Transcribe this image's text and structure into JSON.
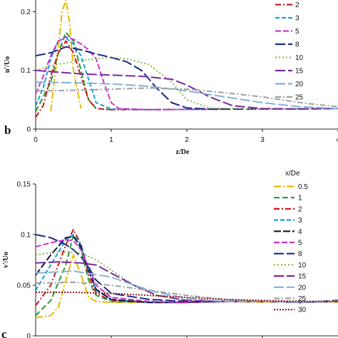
{
  "chart_data": [
    {
      "type": "line",
      "panel_label": "b",
      "xlabel": "z/De",
      "ylabel": "u'/Uo",
      "xlim": [
        0,
        4
      ],
      "ylim": [
        0,
        0.22
      ],
      "xticks": [
        "0",
        "1",
        "2",
        "3",
        "4"
      ],
      "yticks": [
        "0",
        "0.1",
        "0.2"
      ],
      "grid": false,
      "legend": "right",
      "series": [
        {
          "name": "2",
          "color": "#cc1a1a",
          "dash": "8,3,2,3",
          "x": [
            0.0,
            0.1,
            0.2,
            0.3,
            0.4,
            0.5,
            0.6,
            0.7,
            0.8,
            1.0,
            1.5,
            2.5
          ],
          "y": [
            0.02,
            0.04,
            0.09,
            0.13,
            0.15,
            0.13,
            0.09,
            0.05,
            0.035,
            0.033,
            0.033,
            0.034
          ]
        },
        {
          "name": "3",
          "color": "#1aa0d4",
          "dash": "6,3",
          "x": [
            0.0,
            0.1,
            0.2,
            0.3,
            0.4,
            0.5,
            0.6,
            0.7,
            0.8,
            1.0,
            1.5,
            2.5
          ],
          "y": [
            0.04,
            0.07,
            0.12,
            0.15,
            0.155,
            0.145,
            0.125,
            0.085,
            0.045,
            0.034,
            0.033,
            0.034
          ]
        },
        {
          "name": "5",
          "color": "#cc33cc",
          "dash": "8,3",
          "x": [
            0.0,
            0.1,
            0.2,
            0.3,
            0.4,
            0.5,
            0.6,
            0.7,
            0.8,
            0.9,
            1.0,
            1.1,
            1.5,
            2.5
          ],
          "y": [
            0.06,
            0.09,
            0.125,
            0.15,
            0.157,
            0.153,
            0.145,
            0.135,
            0.12,
            0.08,
            0.045,
            0.035,
            0.033,
            0.034
          ]
        },
        {
          "name": "8",
          "color": "#1a2a80",
          "dash": "14,4",
          "x": [
            0.0,
            0.2,
            0.4,
            0.6,
            0.8,
            1.0,
            1.2,
            1.4,
            1.6,
            1.8,
            2.0,
            2.3,
            3.0,
            4.0
          ],
          "y": [
            0.125,
            0.13,
            0.14,
            0.135,
            0.128,
            0.122,
            0.115,
            0.1,
            0.07,
            0.045,
            0.036,
            0.034,
            0.034,
            0.035
          ]
        },
        {
          "name": "10",
          "color": "#8db84a",
          "dash": "2,3",
          "x": [
            0.0,
            0.2,
            0.5,
            0.8,
            1.0,
            1.2,
            1.5,
            1.8,
            2.0,
            2.3,
            3.0,
            4.0
          ],
          "y": [
            0.1,
            0.108,
            0.115,
            0.12,
            0.122,
            0.12,
            0.11,
            0.08,
            0.05,
            0.036,
            0.034,
            0.035
          ]
        },
        {
          "name": "15",
          "color": "#7a2a9a",
          "dash": "14,4",
          "x": [
            0.0,
            0.3,
            0.6,
            1.0,
            1.4,
            1.8,
            2.0,
            2.3,
            2.6,
            3.0,
            3.5,
            4.0
          ],
          "y": [
            0.1,
            0.097,
            0.094,
            0.092,
            0.09,
            0.085,
            0.075,
            0.055,
            0.04,
            0.035,
            0.034,
            0.035
          ]
        },
        {
          "name": "20",
          "color": "#88b0d8",
          "dash": "14,4",
          "x": [
            0.0,
            0.5,
            1.0,
            1.5,
            2.0,
            2.5,
            3.0,
            3.5,
            4.0
          ],
          "y": [
            0.08,
            0.079,
            0.077,
            0.073,
            0.065,
            0.055,
            0.045,
            0.038,
            0.035
          ]
        },
        {
          "name": "25",
          "color": "#a0a0a0",
          "dash": "8,3,2,3",
          "x": [
            0.0,
            0.5,
            1.0,
            1.5,
            2.0,
            2.5,
            3.0,
            3.5,
            4.0
          ],
          "y": [
            0.065,
            0.066,
            0.068,
            0.07,
            0.068,
            0.062,
            0.055,
            0.045,
            0.038
          ]
        }
      ],
      "extra_series": [
        {
          "color": "#e8b800",
          "dash": "10,3,2,3",
          "x": [
            0.2,
            0.3,
            0.35,
            0.4,
            0.45,
            0.5,
            0.6
          ],
          "y": [
            0.03,
            0.14,
            0.2,
            0.22,
            0.18,
            0.1,
            0.035
          ]
        },
        {
          "color": "#2a9a3a",
          "dash": "8,4",
          "x": [
            0.0,
            0.2,
            0.3,
            0.4,
            0.5,
            0.6,
            0.7,
            0.8,
            1.0
          ],
          "y": [
            0.03,
            0.08,
            0.13,
            0.165,
            0.15,
            0.1,
            0.05,
            0.035,
            0.033
          ]
        }
      ]
    },
    {
      "type": "line",
      "panel_label": "c",
      "xlabel": "",
      "ylabel": "v'/Uo",
      "xlim": [
        0,
        4
      ],
      "ylim": [
        0,
        0.15
      ],
      "xticks": [],
      "yticks": [
        "0",
        "0.05",
        "0.1",
        "0.15"
      ],
      "grid": false,
      "legend": "right",
      "legend_title": "x/De",
      "series": [
        {
          "name": "0.5",
          "color": "#e8b800",
          "dash": "10,3,2,3",
          "x": [
            0.0,
            0.2,
            0.3,
            0.4,
            0.5,
            0.6,
            0.7,
            0.8,
            1.0,
            1.5,
            2.0,
            2.5,
            3.0,
            3.5,
            4.0
          ],
          "y": [
            0.018,
            0.02,
            0.028,
            0.055,
            0.08,
            0.06,
            0.038,
            0.034,
            0.033,
            0.033,
            0.033,
            0.034,
            0.033,
            0.034,
            0.033
          ]
        },
        {
          "name": "1",
          "color": "#2a9a3a",
          "dash": "8,4",
          "x": [
            0.0,
            0.2,
            0.4,
            0.5,
            0.6,
            0.7,
            0.8,
            1.0,
            1.5,
            2.0,
            2.5,
            3.0,
            3.5,
            4.0
          ],
          "y": [
            0.02,
            0.035,
            0.07,
            0.1,
            0.085,
            0.055,
            0.04,
            0.034,
            0.033,
            0.033,
            0.034,
            0.034,
            0.033,
            0.035
          ]
        },
        {
          "name": "2",
          "color": "#cc1a1a",
          "dash": "8,3,2,3",
          "x": [
            0.0,
            0.2,
            0.4,
            0.5,
            0.6,
            0.7,
            0.8,
            1.0,
            1.5,
            2.0,
            2.5,
            3.0,
            3.5,
            4.0
          ],
          "y": [
            0.03,
            0.05,
            0.09,
            0.105,
            0.09,
            0.06,
            0.042,
            0.035,
            0.033,
            0.033,
            0.034,
            0.034,
            0.033,
            0.034
          ]
        },
        {
          "name": "3",
          "color": "#1aa0d4",
          "dash": "6,3",
          "x": [
            0.0,
            0.2,
            0.4,
            0.5,
            0.6,
            0.7,
            0.8,
            1.0,
            1.5,
            2.0,
            2.5,
            3.0,
            3.5,
            4.0
          ],
          "y": [
            0.045,
            0.07,
            0.095,
            0.1,
            0.09,
            0.065,
            0.045,
            0.036,
            0.033,
            0.033,
            0.034,
            0.034,
            0.033,
            0.034
          ]
        },
        {
          "name": "4",
          "color": "#101840",
          "dash": "10,3",
          "x": [
            0.0,
            0.2,
            0.4,
            0.5,
            0.6,
            0.7,
            0.8,
            1.0,
            1.5,
            2.0,
            2.5,
            3.0,
            3.5,
            4.0
          ],
          "y": [
            0.06,
            0.08,
            0.097,
            0.098,
            0.088,
            0.065,
            0.046,
            0.036,
            0.033,
            0.033,
            0.034,
            0.034,
            0.033,
            0.034
          ]
        },
        {
          "name": "5",
          "color": "#cc33cc",
          "dash": "8,3",
          "x": [
            0.0,
            0.2,
            0.4,
            0.5,
            0.6,
            0.7,
            0.8,
            1.0,
            1.5,
            2.0,
            2.5,
            3.0,
            3.5,
            4.0
          ],
          "y": [
            0.088,
            0.092,
            0.095,
            0.094,
            0.085,
            0.068,
            0.05,
            0.038,
            0.034,
            0.033,
            0.034,
            0.034,
            0.033,
            0.034
          ]
        },
        {
          "name": "8",
          "color": "#1a2a80",
          "dash": "14,4",
          "x": [
            0.0,
            0.2,
            0.4,
            0.5,
            0.6,
            0.7,
            0.8,
            1.0,
            1.5,
            2.0,
            2.5,
            3.0,
            3.5,
            4.0
          ],
          "y": [
            0.1,
            0.097,
            0.09,
            0.085,
            0.078,
            0.068,
            0.055,
            0.042,
            0.036,
            0.034,
            0.034,
            0.034,
            0.033,
            0.035
          ]
        },
        {
          "name": "10",
          "color": "#8db84a",
          "dash": "2,3",
          "x": [
            0.0,
            0.3,
            0.6,
            0.8,
            1.0,
            1.3,
            1.6,
            2.0,
            2.5,
            3.0,
            3.5,
            4.0
          ],
          "y": [
            0.08,
            0.083,
            0.082,
            0.075,
            0.065,
            0.05,
            0.04,
            0.035,
            0.034,
            0.034,
            0.033,
            0.034
          ]
        },
        {
          "name": "15",
          "color": "#7a2a9a",
          "dash": "14,4",
          "x": [
            0.0,
            0.3,
            0.6,
            0.8,
            1.0,
            1.3,
            1.6,
            2.0,
            2.5,
            3.0,
            3.5,
            4.0
          ],
          "y": [
            0.072,
            0.073,
            0.072,
            0.07,
            0.062,
            0.05,
            0.04,
            0.035,
            0.034,
            0.034,
            0.033,
            0.034
          ]
        },
        {
          "name": "20",
          "color": "#88b0d8",
          "dash": "14,4",
          "x": [
            0.0,
            0.5,
            1.0,
            1.3,
            1.6,
            2.0,
            2.5,
            3.0,
            3.5,
            4.0
          ],
          "y": [
            0.062,
            0.064,
            0.058,
            0.05,
            0.043,
            0.037,
            0.034,
            0.034,
            0.033,
            0.034
          ]
        },
        {
          "name": "25",
          "color": "#a0a0a0",
          "dash": "8,3,2,3",
          "x": [
            0.0,
            0.5,
            1.0,
            1.5,
            2.0,
            2.5,
            3.0,
            3.5,
            4.0
          ],
          "y": [
            0.052,
            0.053,
            0.05,
            0.045,
            0.04,
            0.036,
            0.034,
            0.034,
            0.034
          ]
        },
        {
          "name": "30",
          "color": "#8a1a1a",
          "dash": "2,2",
          "x": [
            0.0,
            0.5,
            1.0,
            1.5,
            2.0,
            2.5,
            3.0,
            3.5,
            4.0
          ],
          "y": [
            0.043,
            0.043,
            0.042,
            0.04,
            0.038,
            0.036,
            0.035,
            0.034,
            0.034
          ]
        }
      ]
    }
  ]
}
